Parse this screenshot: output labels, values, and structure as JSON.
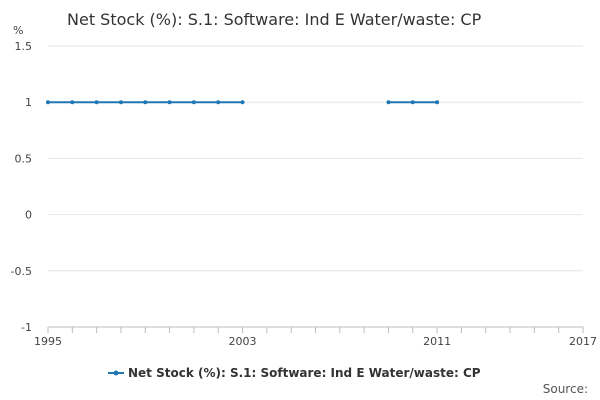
{
  "chart_data": {
    "type": "line",
    "title": "Net Stock (%): S.1: Software: Ind E Water/waste: CP",
    "ylabel": "%",
    "xlabel": "",
    "ylim": [
      -1,
      1.5
    ],
    "xlim": [
      1995,
      2017
    ],
    "y_ticks": [
      "1.5",
      "1",
      "0.5",
      "0",
      "-0.5",
      "-1"
    ],
    "y_tick_values": [
      1.5,
      1,
      0.5,
      0,
      -0.5,
      -1
    ],
    "x_ticks": [
      "1995",
      "2003",
      "2011",
      "2017"
    ],
    "x_tick_values": [
      1995,
      2003,
      2011,
      2017
    ],
    "grid": true,
    "legend_position": "bottom",
    "series": [
      {
        "name": "Net Stock (%): S.1: Software: Ind E Water/waste: CP",
        "color": "#1f77b4",
        "x": [
          1995,
          1996,
          1997,
          1998,
          1999,
          2000,
          2001,
          2002,
          2003,
          2004,
          2005,
          2006,
          2007,
          2008,
          2009,
          2010,
          2011
        ],
        "y": [
          1,
          1,
          1,
          1,
          1,
          1,
          1,
          1,
          1,
          null,
          null,
          null,
          null,
          null,
          1,
          1,
          1
        ]
      }
    ],
    "source_label": "Source:"
  }
}
